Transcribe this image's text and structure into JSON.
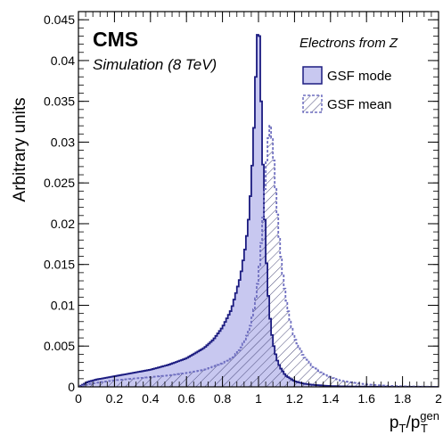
{
  "chart_data": {
    "type": "area",
    "title": "",
    "xlabel": "p_T/p_T^gen",
    "ylabel": "Arbitrary units",
    "xlim": [
      0,
      2
    ],
    "ylim": [
      0,
      0.046
    ],
    "x_ticks": [
      "0",
      "0.2",
      "0.4",
      "0.6",
      "0.8",
      "1",
      "1.2",
      "1.4",
      "1.6",
      "1.8",
      "2"
    ],
    "y_ticks": [
      "0",
      "0.005",
      "0.01",
      "0.015",
      "0.02",
      "0.025",
      "0.03",
      "0.035",
      "0.04",
      "0.045"
    ],
    "grid": false,
    "legend": {
      "placement": "top-right",
      "header": "Electrons from Z",
      "entries": [
        "GSF mode",
        "GSF mean"
      ]
    },
    "annotations": {
      "experiment": "CMS",
      "subtitle": "Simulation (8 TeV)"
    },
    "colors": {
      "mode_fill": "#c8c8f0",
      "mode_line": "#1c1c80",
      "mean_line": "#6f6fc0",
      "hatch": "#4a4a7a",
      "axis": "#000000"
    },
    "series": [
      {
        "name": "GSF mode",
        "style": "filled",
        "x": [
          0.0,
          0.02,
          0.05,
          0.1,
          0.2,
          0.3,
          0.4,
          0.5,
          0.6,
          0.7,
          0.75,
          0.8,
          0.85,
          0.9,
          0.93,
          0.95,
          0.97,
          0.98,
          0.99,
          1.0,
          1.005,
          1.01,
          1.02,
          1.03,
          1.04,
          1.05,
          1.06,
          1.07,
          1.08,
          1.1,
          1.12,
          1.15,
          1.2,
          1.25,
          1.3,
          1.4,
          1.5,
          1.6,
          1.8,
          2.0
        ],
        "y": [
          0.0,
          0.0002,
          0.0006,
          0.0009,
          0.0013,
          0.0017,
          0.0021,
          0.0027,
          0.0035,
          0.0048,
          0.0058,
          0.0073,
          0.0095,
          0.0135,
          0.0175,
          0.0215,
          0.029,
          0.0345,
          0.0415,
          0.0448,
          0.043,
          0.039,
          0.031,
          0.0235,
          0.0175,
          0.0128,
          0.0095,
          0.0072,
          0.0055,
          0.0035,
          0.0024,
          0.0014,
          0.0007,
          0.0004,
          0.00025,
          0.0001,
          5e-05,
          3e-05,
          1e-05,
          0.0
        ]
      },
      {
        "name": "GSF mean",
        "style": "hatched",
        "x": [
          0.0,
          0.02,
          0.05,
          0.1,
          0.2,
          0.3,
          0.4,
          0.5,
          0.6,
          0.7,
          0.8,
          0.85,
          0.9,
          0.95,
          0.98,
          1.0,
          1.02,
          1.04,
          1.05,
          1.06,
          1.065,
          1.07,
          1.08,
          1.09,
          1.1,
          1.12,
          1.14,
          1.16,
          1.18,
          1.2,
          1.25,
          1.3,
          1.35,
          1.4,
          1.45,
          1.5,
          1.6,
          1.7,
          1.8,
          2.0
        ],
        "y": [
          0.0,
          0.0001,
          0.0003,
          0.0005,
          0.0008,
          0.001,
          0.0012,
          0.0014,
          0.0017,
          0.0021,
          0.0029,
          0.0035,
          0.0046,
          0.007,
          0.01,
          0.0135,
          0.019,
          0.026,
          0.0295,
          0.0315,
          0.032,
          0.0315,
          0.0295,
          0.026,
          0.0225,
          0.017,
          0.0128,
          0.0098,
          0.0077,
          0.006,
          0.0037,
          0.0025,
          0.0017,
          0.0012,
          0.0008,
          0.0006,
          0.0003,
          0.00015,
          7e-05,
          0.0
        ]
      }
    ]
  }
}
